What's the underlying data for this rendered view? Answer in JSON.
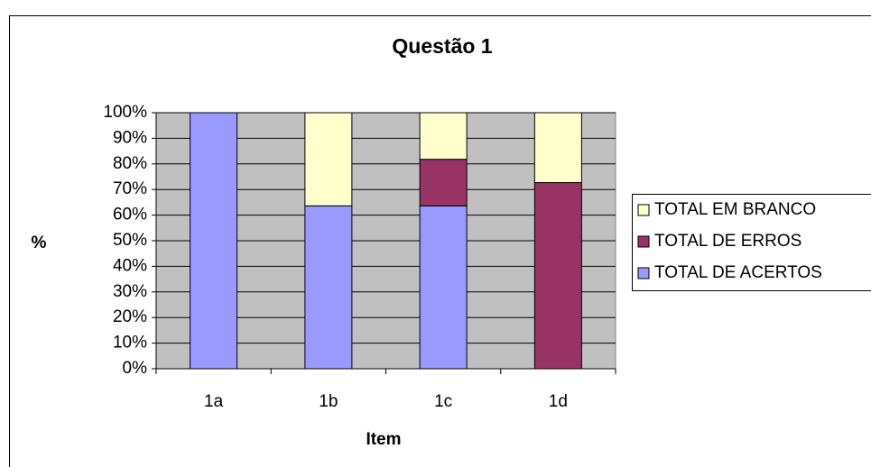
{
  "chart_data": {
    "type": "stacked_bar",
    "title": "Questão 1",
    "x_label": "Item",
    "y_label": "%",
    "categories": [
      "1a",
      "1b",
      "1c",
      "1d"
    ],
    "series": [
      {
        "name": "TOTAL DE ACERTOS",
        "color": "#9999ff",
        "values": [
          100,
          63.6,
          63.6,
          0
        ]
      },
      {
        "name": "TOTAL DE ERROS",
        "color": "#993366",
        "values": [
          0,
          0,
          18.2,
          72.7
        ]
      },
      {
        "name": "TOTAL EM BRANCO",
        "color": "#ffffcc",
        "values": [
          0,
          36.4,
          18.2,
          27.3
        ]
      }
    ],
    "ylim": [
      0,
      100
    ],
    "yticks": [
      {
        "value": 0,
        "label": "0%"
      },
      {
        "value": 10,
        "label": "10%"
      },
      {
        "value": 20,
        "label": "20%"
      },
      {
        "value": 30,
        "label": "30%"
      },
      {
        "value": 40,
        "label": "40%"
      },
      {
        "value": 50,
        "label": "50%"
      },
      {
        "value": 60,
        "label": "60%"
      },
      {
        "value": 70,
        "label": "70%"
      },
      {
        "value": 80,
        "label": "80%"
      },
      {
        "value": 90,
        "label": "90%"
      },
      {
        "value": 100,
        "label": "100%"
      }
    ],
    "grid": true,
    "legend": "right"
  }
}
